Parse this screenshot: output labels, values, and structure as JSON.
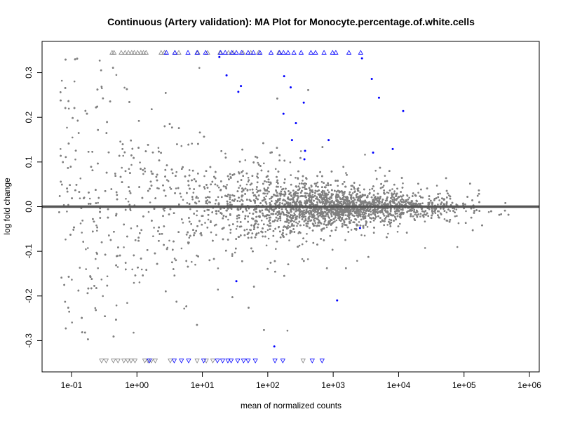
{
  "chart_data": {
    "type": "scatter",
    "title": "Continuous (Artery validation): MA Plot for Monocyte.percentage.of.white.cells",
    "xlabel": "mean of normalized counts",
    "ylabel": "log fold change",
    "xscale": "log10",
    "xlim_log10": [
      -1.45,
      6.15
    ],
    "ylim": [
      -0.37,
      0.37
    ],
    "x_ticks": [
      {
        "v": -1,
        "label": "1e-01"
      },
      {
        "v": 0,
        "label": "1e+00"
      },
      {
        "v": 1,
        "label": "1e+01"
      },
      {
        "v": 2,
        "label": "1e+02"
      },
      {
        "v": 3,
        "label": "1e+03"
      },
      {
        "v": 4,
        "label": "1e+04"
      },
      {
        "v": 5,
        "label": "1e+05"
      },
      {
        "v": 6,
        "label": "1e+06"
      }
    ],
    "y_ticks": [
      {
        "v": -0.3,
        "label": "-0.3"
      },
      {
        "v": -0.2,
        "label": "-0.2"
      },
      {
        "v": -0.1,
        "label": "-0.1"
      },
      {
        "v": 0,
        "label": "0.0"
      },
      {
        "v": 0.1,
        "label": "0.1"
      },
      {
        "v": 0.2,
        "label": "0.2"
      },
      {
        "v": 0.3,
        "label": "0.3"
      }
    ],
    "reference_line_y": 0,
    "colors": {
      "nonsignificant": "#808080",
      "significant": "#0000ff",
      "refline": "#555555"
    },
    "background_points_model": {
      "n": 9000,
      "note": "non-significant genes, gray",
      "seed": 7
    },
    "significant_points": [
      [
        1.26,
        0.335
      ],
      [
        1.37,
        0.294
      ],
      [
        1.59,
        0.27
      ],
      [
        1.55,
        0.257
      ],
      [
        2.25,
        0.292
      ],
      [
        2.35,
        0.267
      ],
      [
        2.55,
        0.233
      ],
      [
        2.24,
        0.208
      ],
      [
        2.43,
        0.187
      ],
      [
        2.37,
        0.149
      ],
      [
        2.57,
        0.125
      ],
      [
        2.93,
        0.149
      ],
      [
        3.44,
        0.332
      ],
      [
        3.59,
        0.286
      ],
      [
        3.7,
        0.244
      ],
      [
        4.07,
        0.214
      ],
      [
        3.61,
        0.121
      ],
      [
        3.91,
        0.129
      ],
      [
        2.56,
        0.106
      ],
      [
        3.41,
        -0.048
      ],
      [
        1.52,
        -0.167
      ],
      [
        2.1,
        -0.313
      ],
      [
        3.06,
        -0.21
      ]
    ],
    "clipped_up": {
      "y": 0.345,
      "gray_log10x": [
        -0.38,
        -0.35,
        -0.24,
        -0.18,
        -0.13,
        -0.08,
        -0.04,
        0.01,
        0.06,
        0.1,
        0.14,
        0.37,
        0.42,
        0.58,
        0.64,
        0.93,
        1.08,
        1.27,
        1.4,
        1.47,
        1.62,
        1.74,
        1.86,
        2.17
      ],
      "blue_log10x": [
        0.45,
        0.58,
        0.78,
        0.92,
        1.05,
        1.28,
        1.35,
        1.45,
        1.52,
        1.6,
        1.7,
        1.78,
        1.88,
        2.05,
        2.18,
        2.24,
        2.31,
        2.4,
        2.51,
        2.66,
        2.73,
        2.86,
        2.99,
        3.04,
        3.24,
        3.42
      ]
    },
    "clipped_down": {
      "y": -0.345,
      "gray_log10x": [
        -0.54,
        -0.47,
        -0.36,
        -0.29,
        -0.2,
        -0.14,
        -0.09,
        -0.03,
        0.12,
        0.17,
        0.22,
        0.28,
        0.51,
        0.92,
        1.06,
        1.16,
        2.54
      ],
      "blue_log10x": [
        0.19,
        0.57,
        0.68,
        0.79,
        1.02,
        1.23,
        1.31,
        1.39,
        1.44,
        1.54,
        1.63,
        1.7,
        1.81,
        2.11,
        2.23,
        2.68,
        2.83
      ]
    }
  }
}
